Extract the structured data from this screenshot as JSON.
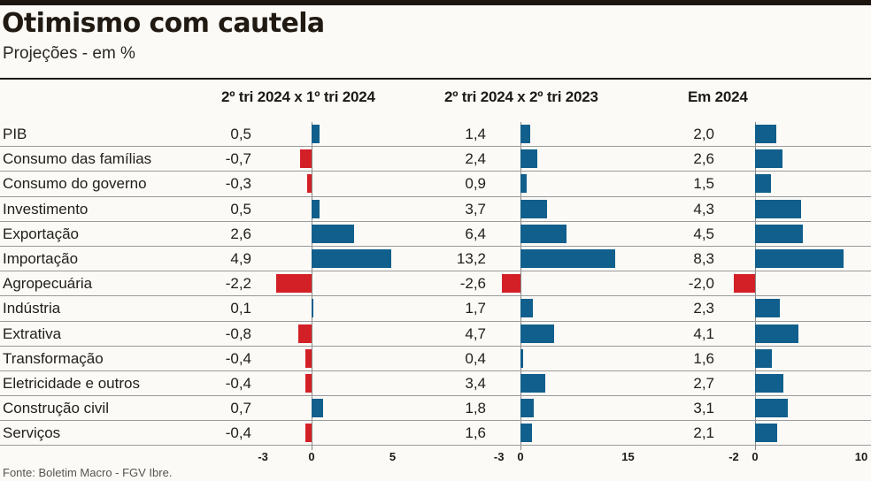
{
  "page": {
    "title": "Otimismo com cautela",
    "subtitle": "Projeções - em %",
    "source": "Fonte: Boletim Macro - FGV Ibre."
  },
  "colors": {
    "positive_bar": "#115f8c",
    "negative_bar": "#d32026",
    "row_separator": "#9a9a9a",
    "axis_line": "#878787",
    "heavy_rule": "#1d1610"
  },
  "chart_data": {
    "type": "bar",
    "orientation": "horizontal",
    "title": "Otimismo com cautela",
    "subtitle": "Projeções - em %",
    "source": "Fonte: Boletim Macro - FGV Ibre.",
    "unit": "%",
    "grid": "row-separators-only",
    "categories": [
      "PIB",
      "Consumo das famílias",
      "Consumo do governo",
      "Investimento",
      "Exportação",
      "Importação",
      "Agropecuária",
      "Indústria",
      "Extrativa",
      "Transformação",
      "Eletricidade e outros",
      "Construção civil",
      "Serviços"
    ],
    "series": [
      {
        "name": "2º tri 2024 x 1º tri 2024",
        "values": [
          0.5,
          -0.7,
          -0.3,
          0.5,
          2.6,
          4.9,
          -2.2,
          0.1,
          -0.8,
          -0.4,
          -0.4,
          0.7,
          -0.4
        ],
        "labels": [
          "0,5",
          "-0,7",
          "-0,3",
          "0,5",
          "2,6",
          "4,9",
          "-2,2",
          "0,1",
          "-0,8",
          "-0,4",
          "-0,4",
          "0,7",
          "-0,4"
        ],
        "ticks": [
          -3,
          0,
          5
        ],
        "tick_labels": [
          "-3",
          "0",
          "5"
        ],
        "xlim": [
          -3.6,
          5.6
        ]
      },
      {
        "name": "2º tri 2024 x 2º tri 2023",
        "values": [
          1.4,
          2.4,
          0.9,
          3.7,
          6.4,
          13.2,
          -2.6,
          1.7,
          4.7,
          0.4,
          3.4,
          1.8,
          1.6
        ],
        "labels": [
          "1,4",
          "2,4",
          "0,9",
          "3,7",
          "6,4",
          "13,2",
          "-2,6",
          "1,7",
          "4,7",
          "0,4",
          "3,4",
          "1,8",
          "1,6"
        ],
        "ticks": [
          -3,
          0,
          15
        ],
        "tick_labels": [
          "-3",
          "0",
          "15"
        ],
        "xlim": [
          -4.6,
          16.2
        ]
      },
      {
        "name": "Em 2024",
        "values": [
          2.0,
          2.6,
          1.5,
          4.3,
          4.5,
          8.3,
          -2.0,
          2.3,
          4.1,
          1.6,
          2.7,
          3.1,
          2.1
        ],
        "labels": [
          "2,0",
          "2,6",
          "1,5",
          "4,3",
          "4,5",
          "8,3",
          "-2,0",
          "2,3",
          "4,1",
          "1,6",
          "2,7",
          "3,1",
          "2,1"
        ],
        "ticks": [
          -2,
          0,
          10
        ],
        "tick_labels": [
          "-2",
          "0",
          "10"
        ],
        "xlim": [
          -2.9,
          10.9
        ]
      }
    ]
  }
}
